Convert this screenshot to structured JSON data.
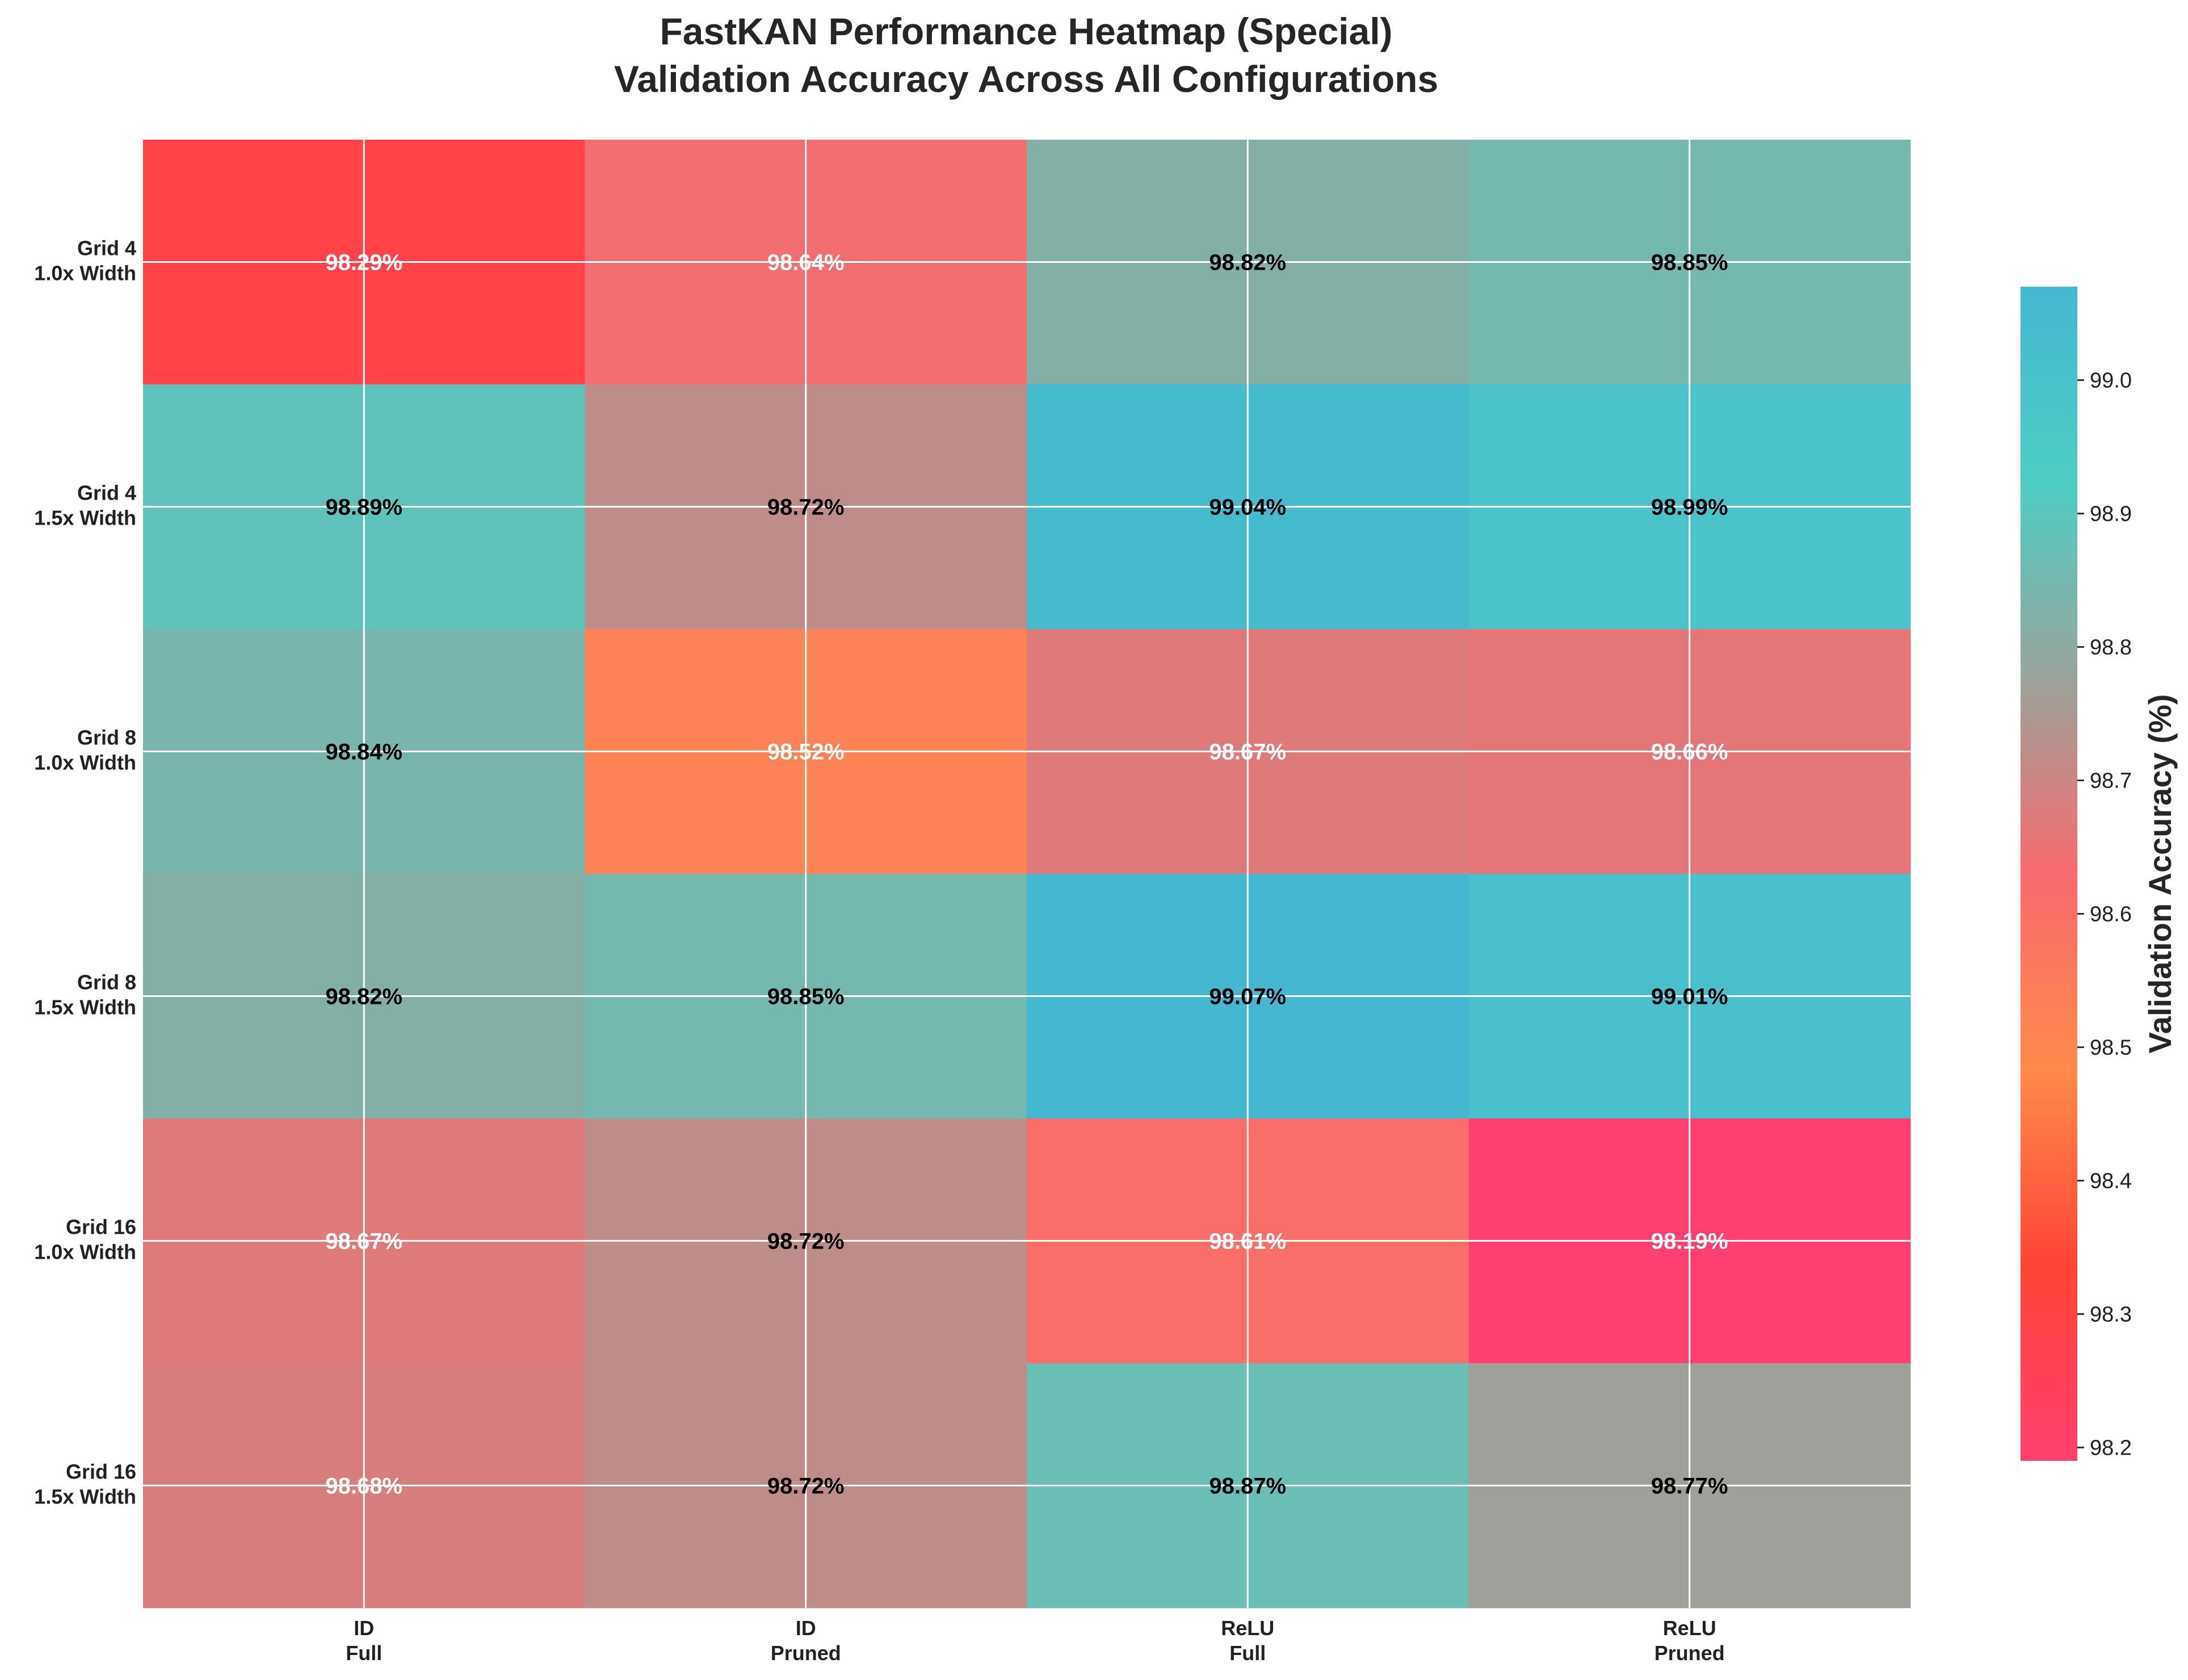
{
  "chart_data": {
    "type": "heatmap",
    "title": [
      "FastKAN Performance Heatmap (Special)",
      "Validation Accuracy Across All Configurations"
    ],
    "rows": [
      [
        "Grid 4",
        "1.0x Width"
      ],
      [
        "Grid 4",
        "1.5x Width"
      ],
      [
        "Grid 8",
        "1.0x Width"
      ],
      [
        "Grid 8",
        "1.5x Width"
      ],
      [
        "Grid 16",
        "1.0x Width"
      ],
      [
        "Grid 16",
        "1.5x Width"
      ]
    ],
    "columns": [
      [
        "ID",
        "Full"
      ],
      [
        "ID",
        "Pruned"
      ],
      [
        "ReLU",
        "Full"
      ],
      [
        "ReLU",
        "Pruned"
      ]
    ],
    "values": [
      [
        98.29,
        98.64,
        98.82,
        98.85
      ],
      [
        98.89,
        98.72,
        99.04,
        98.99
      ],
      [
        98.84,
        98.52,
        98.67,
        98.66
      ],
      [
        98.82,
        98.85,
        99.07,
        99.01
      ],
      [
        98.67,
        98.72,
        98.61,
        98.19
      ],
      [
        98.68,
        98.72,
        98.87,
        98.77
      ]
    ],
    "cell_labels": [
      [
        "98.29%",
        "98.64%",
        "98.82%",
        "98.85%"
      ],
      [
        "98.89%",
        "98.72%",
        "99.04%",
        "98.99%"
      ],
      [
        "98.84%",
        "98.52%",
        "98.67%",
        "98.66%"
      ],
      [
        "98.82%",
        "98.85%",
        "99.07%",
        "99.01%"
      ],
      [
        "98.67%",
        "98.72%",
        "98.61%",
        "98.19%"
      ],
      [
        "98.68%",
        "98.72%",
        "98.87%",
        "98.77%"
      ]
    ],
    "colorbar": {
      "label": "Validation Accuracy (%)",
      "range": [
        98.19,
        99.07
      ],
      "ticks": [
        "98.2",
        "98.3",
        "98.4",
        "98.5",
        "98.6",
        "98.7",
        "98.8",
        "98.9",
        "99.0"
      ],
      "colors": [
        "#ff4070",
        "#ff4436",
        "#ff8a4c",
        "#f86a6e",
        "#9aa39b",
        "#4ecdc4",
        "#45b7d1"
      ]
    },
    "grid": true
  }
}
